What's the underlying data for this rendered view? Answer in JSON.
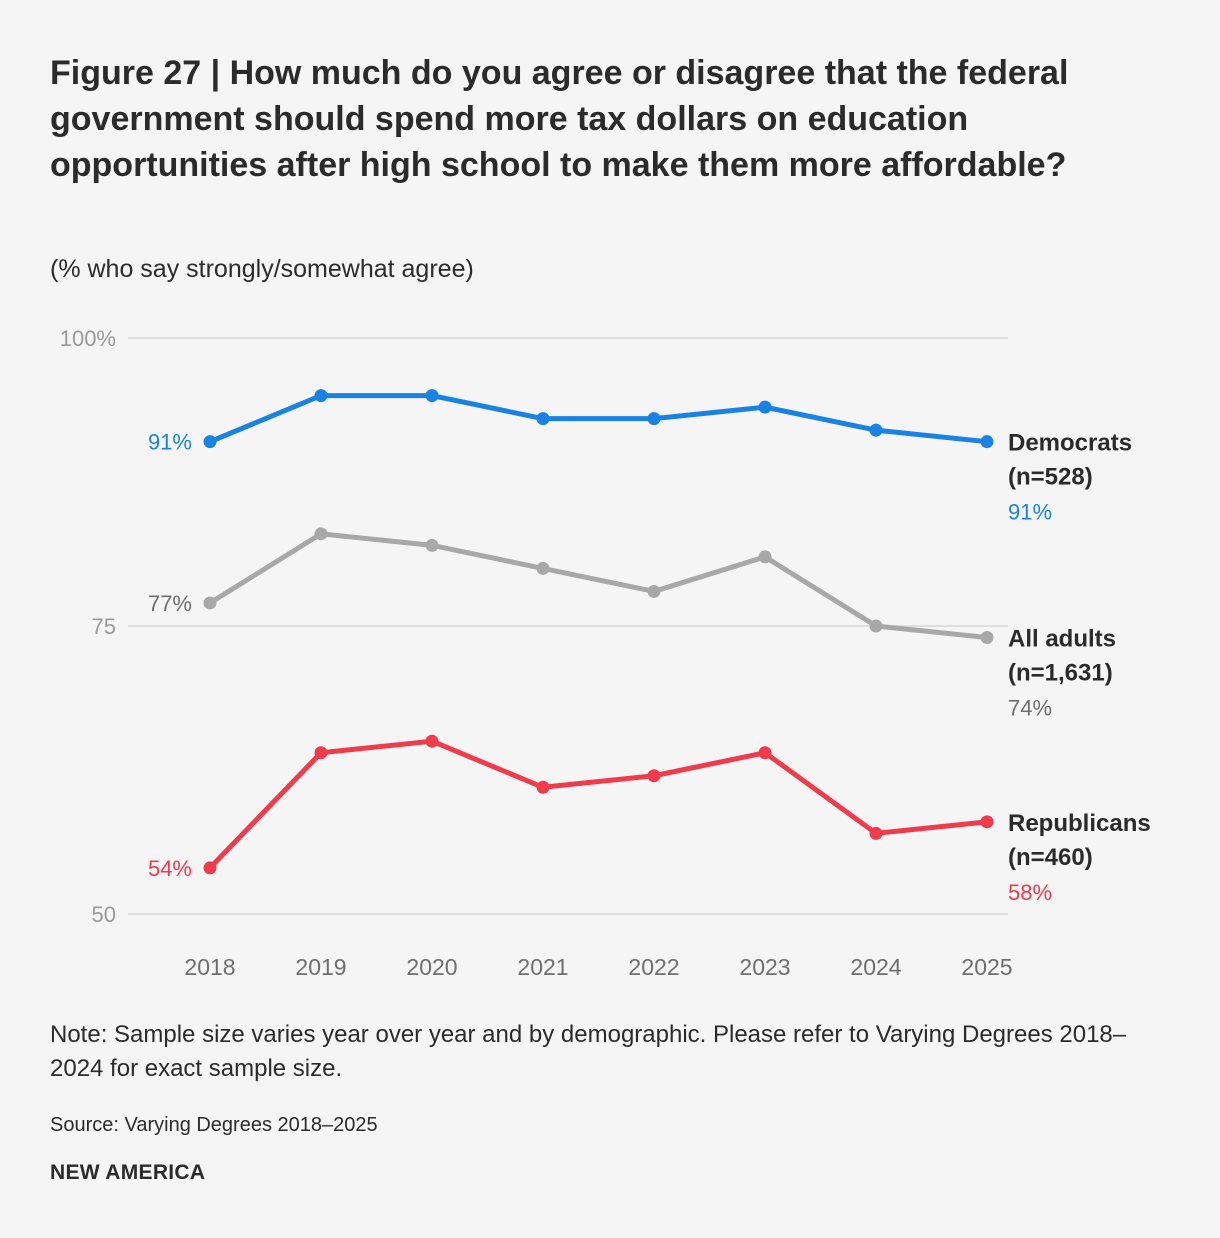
{
  "header": {
    "title": "Figure 27 | How much do you agree or disagree that the federal government should spend more tax dollars on education opportunities after high school to make them more affordable?",
    "subtitle": "(% who say strongly/somewhat agree)"
  },
  "chart_data": {
    "type": "line",
    "x": [
      "2018",
      "2019",
      "2020",
      "2021",
      "2022",
      "2023",
      "2024",
      "2025"
    ],
    "ylim": [
      50,
      100
    ],
    "yticks": [
      {
        "value": 100,
        "label": "100%"
      },
      {
        "value": 75,
        "label": "75"
      },
      {
        "value": 50,
        "label": "50"
      }
    ],
    "grid": true,
    "series": [
      {
        "name": "Democrats",
        "n_label": "(n=528)",
        "color": "#1a82e2",
        "values": [
          91,
          95,
          95,
          93,
          93,
          94,
          92,
          91
        ],
        "start_label": "91%",
        "end_label": "91%"
      },
      {
        "name": "All adults",
        "n_label": "(n=1,631)",
        "color": "#a8a8a8",
        "label_color": "#6e6e6e",
        "values": [
          77,
          83,
          82,
          80,
          78,
          81,
          75,
          74
        ],
        "start_label": "77%",
        "end_label": "74%"
      },
      {
        "name": "Republicans",
        "n_label": "(n=460)",
        "color": "#ee3c4c",
        "values": [
          54,
          64,
          65,
          61,
          62,
          64,
          57,
          58
        ],
        "start_label": "54%",
        "end_label": "58%"
      }
    ]
  },
  "footer": {
    "note": "Note: Sample size varies year over year and by demographic. Please refer to Varying Degrees 2018–2024 for exact sample size.",
    "source": "Source: Varying Degrees 2018–2025",
    "brand": "NEW AMERICA"
  }
}
